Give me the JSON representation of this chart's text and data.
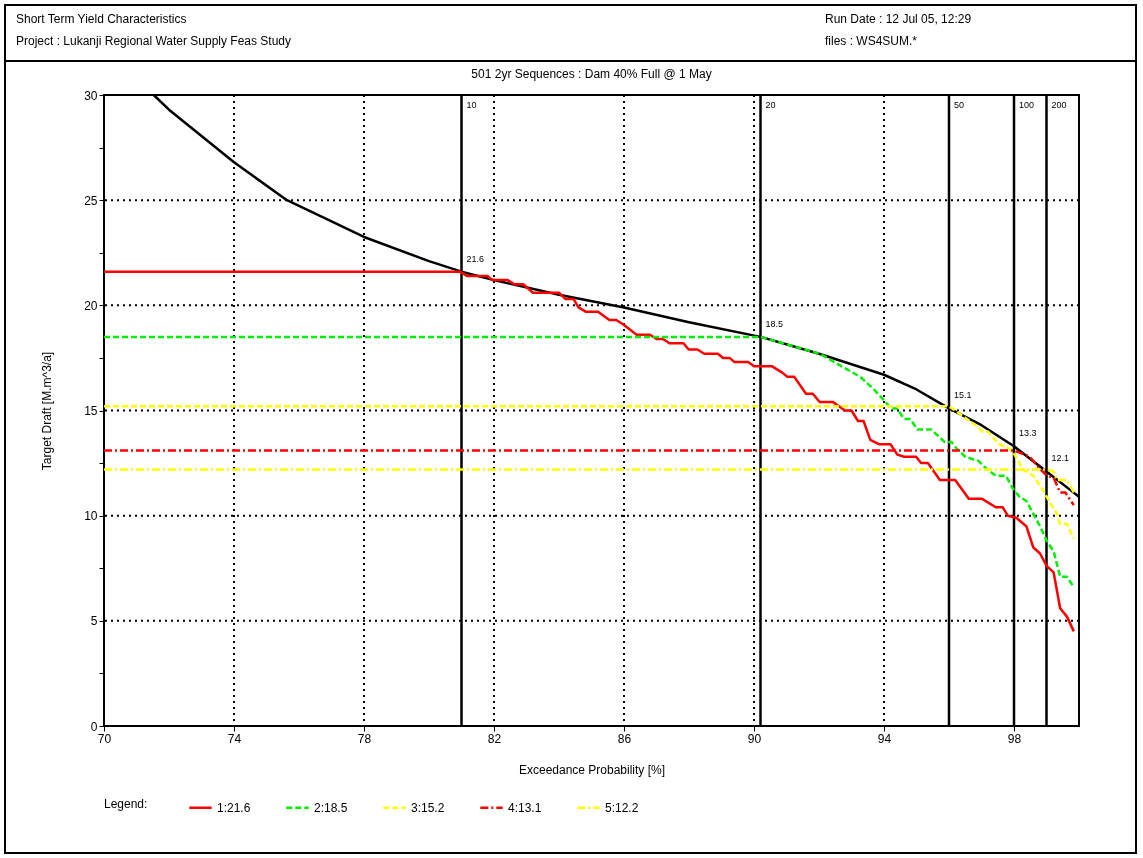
{
  "chart_data": {
    "type": "line",
    "title": "501  2yr Sequences : Dam 40% Full @ 1 May",
    "xlabel": "Exceedance Probability [%]",
    "ylabel": "Target Draft [M.m^3/a]",
    "legend_title": "Legend:",
    "legend": "bottom",
    "grid": true,
    "xlim": [
      70,
      100
    ],
    "xticks": [
      70,
      74,
      78,
      82,
      86,
      90,
      94,
      98
    ],
    "ylim": [
      0,
      30
    ],
    "yticks": [
      0,
      {
        "value": 2.5,
        "label": null
      },
      5,
      {
        "value": 7.5,
        "label": null
      },
      10,
      {
        "value": 12.5,
        "label": null
      },
      15,
      {
        "value": 17.5,
        "label": null
      },
      20,
      {
        "value": 22.5,
        "label": null
      },
      25,
      {
        "value": 27.5,
        "label": null
      },
      30
    ],
    "series": [
      {
        "name": "1:21.6",
        "color": "#ff0000",
        "line_style": "solid",
        "x": [
          70,
          80.95,
          81.17,
          81.8,
          81.95,
          82.42,
          82.63,
          82.9,
          83.2,
          84.0,
          84.2,
          84.45,
          84.6,
          84.82,
          85.2,
          85.55,
          85.76,
          85.97,
          86.39,
          86.8,
          87.0,
          87.2,
          87.4,
          87.83,
          87.99,
          88.26,
          88.47,
          88.89,
          89.05,
          89.25,
          89.4,
          89.83,
          90.0,
          90.56,
          90.87,
          91.03,
          91.24,
          91.6,
          91.81,
          92.02,
          92.43,
          92.8,
          93.0,
          93.2,
          93.37,
          93.58,
          93.84,
          94.2,
          94.41,
          94.62,
          94.99,
          95.14,
          95.35,
          95.72,
          96.19,
          96.61,
          97.02,
          97.44,
          97.65,
          97.81,
          98.07,
          98.38,
          98.59,
          98.8,
          99.01,
          99.22,
          99.42,
          99.63,
          99.84
        ],
        "values": [
          21.6,
          21.6,
          21.4,
          21.4,
          21.2,
          21.2,
          21.0,
          21.0,
          20.6,
          20.6,
          20.3,
          20.3,
          19.9,
          19.7,
          19.7,
          19.3,
          19.3,
          19.1,
          18.6,
          18.6,
          18.4,
          18.4,
          18.2,
          18.2,
          17.9,
          17.9,
          17.7,
          17.7,
          17.5,
          17.5,
          17.3,
          17.3,
          17.1,
          17.1,
          16.8,
          16.6,
          16.6,
          15.8,
          15.8,
          15.4,
          15.4,
          15.0,
          15.0,
          14.5,
          14.5,
          13.6,
          13.4,
          13.4,
          12.9,
          12.8,
          12.8,
          12.5,
          12.5,
          11.7,
          11.7,
          10.8,
          10.8,
          10.4,
          10.4,
          10.0,
          9.9,
          9.5,
          8.5,
          8.2,
          7.6,
          7.3,
          5.6,
          5.2,
          4.5
        ]
      },
      {
        "name": "2:18.5",
        "color": "#00ee00",
        "line_style": "dashed",
        "x": [
          70,
          90.2,
          92.02,
          93.27,
          93.69,
          94.05,
          94.21,
          94.4,
          94.62,
          94.8,
          95.03,
          95.45,
          95.66,
          95.87,
          96.08,
          96.23,
          96.5,
          96.91,
          97.17,
          97.44,
          97.75,
          97.96,
          98.17,
          98.38,
          98.59,
          98.8,
          99.01,
          99.22,
          99.42,
          99.63,
          99.84
        ],
        "values": [
          18.5,
          18.5,
          17.7,
          16.6,
          16.0,
          15.4,
          15.1,
          15.1,
          14.6,
          14.6,
          14.1,
          14.1,
          13.8,
          13.5,
          13.5,
          13.2,
          12.8,
          12.6,
          12.2,
          11.9,
          11.9,
          11.3,
          10.9,
          10.7,
          10.1,
          9.5,
          8.8,
          8.3,
          7.1,
          7.1,
          6.6
        ]
      },
      {
        "name": "3:15.2",
        "color": "#ffff00",
        "line_style": "dashed",
        "x": [
          70,
          96.0,
          96.91,
          97.02,
          97.2,
          97.54,
          97.86,
          98.02,
          98.28,
          98.59,
          98.9,
          99.11,
          99.32,
          99.42,
          99.63,
          99.84
        ],
        "values": [
          15.2,
          15.2,
          14.2,
          14.0,
          14.0,
          13.4,
          13.2,
          12.9,
          12.2,
          11.9,
          11.2,
          10.6,
          10.1,
          9.6,
          9.6,
          8.9
        ]
      },
      {
        "name": "4:13.1",
        "color": "#ff0000",
        "line_style": "dashdot",
        "x": [
          70,
          98.0,
          98.49,
          98.75,
          99.01,
          99.22,
          99.42,
          99.58,
          99.84
        ],
        "values": [
          13.1,
          13.1,
          12.8,
          12.3,
          11.9,
          11.8,
          11.1,
          11.1,
          10.5
        ]
      },
      {
        "name": "5:12.2",
        "color": "#ffff00",
        "line_style": "dashdot",
        "x": [
          70,
          99.0,
          99.22,
          99.32,
          99.63,
          99.84
        ],
        "values": [
          12.2,
          12.2,
          12.1,
          11.7,
          11.7,
          11.1
        ]
      },
      {
        "color": "#000000",
        "line_style": "solid",
        "x": [
          71.53,
          72,
          74,
          75.63,
          78,
          80,
          81,
          82,
          84,
          86,
          88,
          90.2,
          92,
          94,
          95,
          96,
          97,
          98,
          99,
          99.5,
          100
        ],
        "values": [
          30,
          29.3,
          26.8,
          25,
          23.25,
          22.1,
          21.6,
          21.2,
          20.5,
          19.9,
          19.2,
          18.5,
          17.7,
          16.7,
          16.0,
          15.1,
          14.3,
          13.3,
          12.1,
          11.5,
          10.9
        ]
      }
    ],
    "ref_lines": [
      {
        "axis": "x",
        "value": 81,
        "color": "#000000"
      },
      {
        "axis": "x",
        "value": 90.2,
        "color": "#000000"
      },
      {
        "axis": "x",
        "value": 96,
        "color": "#000000"
      },
      {
        "axis": "x",
        "value": 98,
        "color": "#000000"
      },
      {
        "axis": "x",
        "value": 99,
        "color": "#000000"
      }
    ],
    "annotations": [
      "Short Term Yield Characteristics",
      "Run Date   : 12 Jul 05, 12:29",
      "Project : Lukanji Regional Water Supply Feas Study",
      "files : WS4SUM.*",
      {
        "text": "10",
        "x": 81,
        "y": 30
      },
      {
        "text": "20",
        "x": 90.2,
        "y": 30
      },
      {
        "text": "50",
        "x": 96,
        "y": 30
      },
      {
        "text": "100",
        "x": 98,
        "y": 30
      },
      {
        "text": "200",
        "x": 99,
        "y": 30
      },
      {
        "text": "21.6",
        "x": 81,
        "y": 21.6
      },
      {
        "text": "18.5",
        "x": 90.2,
        "y": 18.5
      },
      {
        "text": "15.1",
        "x": 96,
        "y": 15.1
      },
      {
        "text": "13.3",
        "x": 98,
        "y": 13.3
      },
      {
        "text": "12.1",
        "x": 99,
        "y": 12.1
      }
    ]
  }
}
